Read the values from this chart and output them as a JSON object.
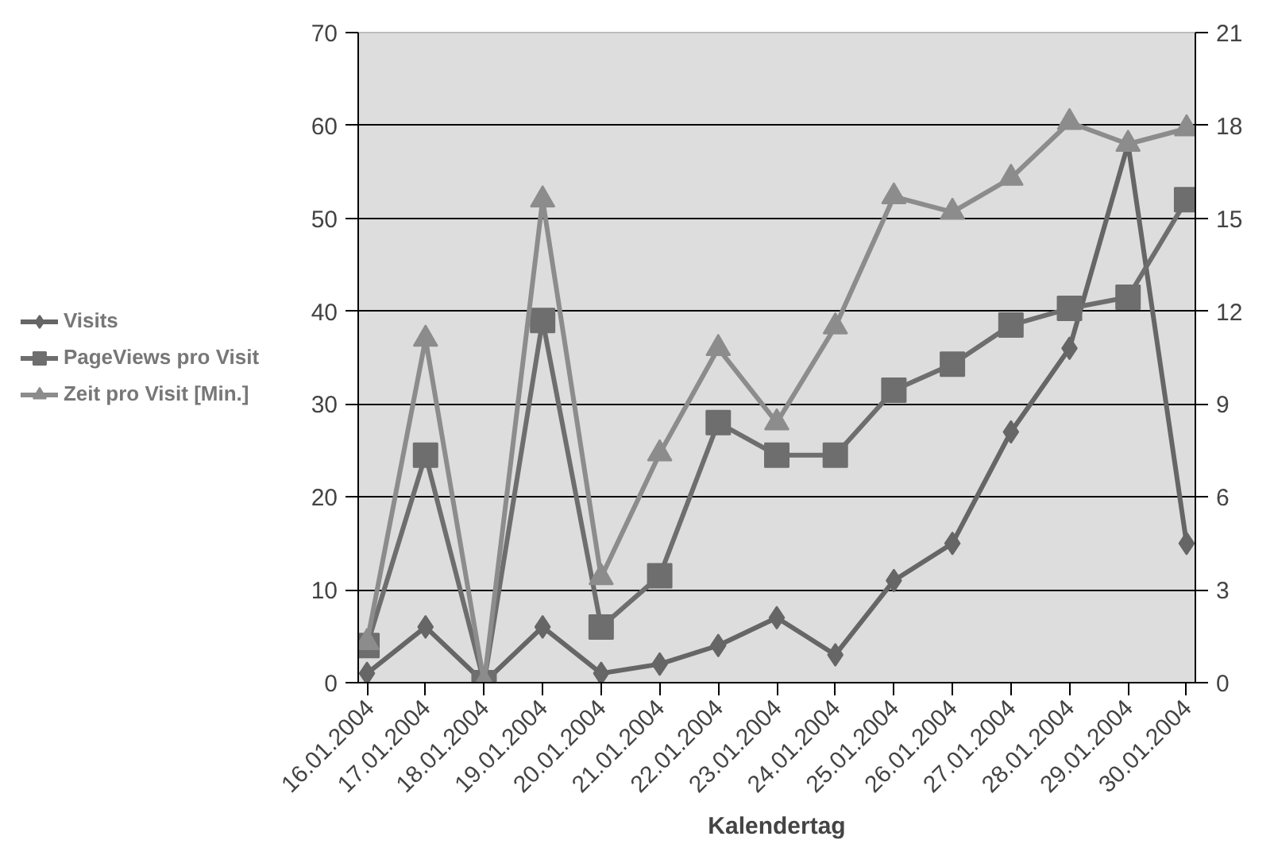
{
  "chart_data": {
    "type": "line",
    "xlabel": "Kalendertag",
    "categories": [
      "16.01.2004",
      "17.01.2004",
      "18.01.2004",
      "19.01.2004",
      "20.01.2004",
      "21.01.2004",
      "22.01.2004",
      "23.01.2004",
      "24.01.2004",
      "25.01.2004",
      "26.01.2004",
      "27.01.2004",
      "28.01.2004",
      "29.01.2004",
      "30.01.2004"
    ],
    "series": [
      {
        "name": "Visits",
        "color": "#666666",
        "marker": "diamond",
        "values": [
          1,
          6,
          0,
          6,
          1,
          2,
          4,
          7,
          3,
          11,
          15,
          27,
          36,
          58,
          15
        ]
      },
      {
        "name": "PageViews pro Visit",
        "color": "#6e6e6e",
        "marker": "square",
        "values": [
          4,
          24.5,
          0,
          39,
          6,
          11.5,
          28,
          24.5,
          24.5,
          31.5,
          34.3,
          38.5,
          40.3,
          41.5,
          52
        ]
      },
      {
        "name": "Zeit pro Visit [Min.]",
        "color": "#8c8c8c",
        "marker": "triangle",
        "axis": "y2",
        "values": [
          1.3,
          11.1,
          0,
          15.6,
          3.4,
          7.4,
          10.8,
          8.4,
          11.5,
          15.7,
          15.2,
          16.3,
          18.1,
          17.4,
          17.9
        ]
      }
    ],
    "ylim": [
      0,
      70
    ],
    "yticks": [
      0,
      10,
      20,
      30,
      40,
      50,
      60,
      70
    ],
    "y2lim": [
      0,
      21
    ],
    "y2ticks": [
      0,
      3,
      6,
      9,
      12,
      15,
      18,
      21
    ],
    "grid": "y",
    "legend": "left",
    "line_style": "solid"
  }
}
